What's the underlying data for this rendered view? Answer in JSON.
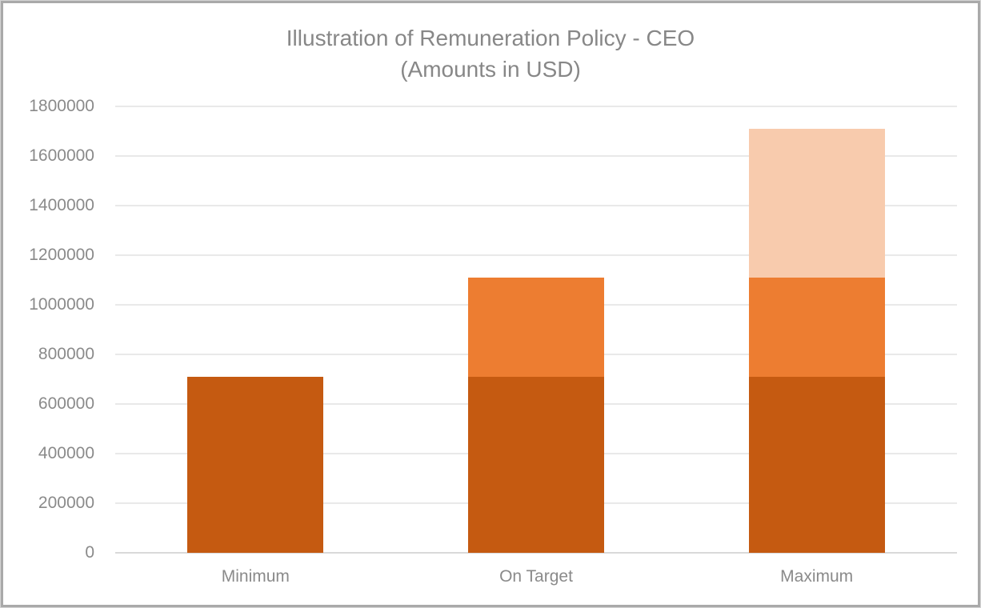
{
  "chart_data": {
    "type": "bar",
    "stacked": true,
    "title": "Illustration of Remuneration Policy - CEO",
    "subtitle": "(Amounts in USD)",
    "categories": [
      "Minimum",
      "On Target",
      "Maximum"
    ],
    "series": [
      {
        "name": "segment-dark-orange",
        "color": "#C55A11",
        "values": [
          710000,
          710000,
          710000
        ]
      },
      {
        "name": "segment-orange",
        "color": "#ED7D31",
        "values": [
          0,
          400000,
          400000
        ]
      },
      {
        "name": "segment-light-orange",
        "color": "#F8CBAD",
        "values": [
          0,
          0,
          600000
        ]
      }
    ],
    "totals": [
      710000,
      1110000,
      1710000
    ],
    "xlabel": "",
    "ylabel": "",
    "ylim": [
      0,
      1800000
    ],
    "ytick_step": 200000,
    "ytick_labels": [
      "0",
      "200000",
      "400000",
      "600000",
      "800000",
      "1000000",
      "1200000",
      "1400000",
      "1600000",
      "1800000"
    ],
    "grid": true,
    "legend": false,
    "text_color": "#8a8a8a",
    "gridline_color": "#e9e9e9",
    "axis_line_color": "#d9d9d9",
    "frame_border_color": "#a9a9a9"
  }
}
